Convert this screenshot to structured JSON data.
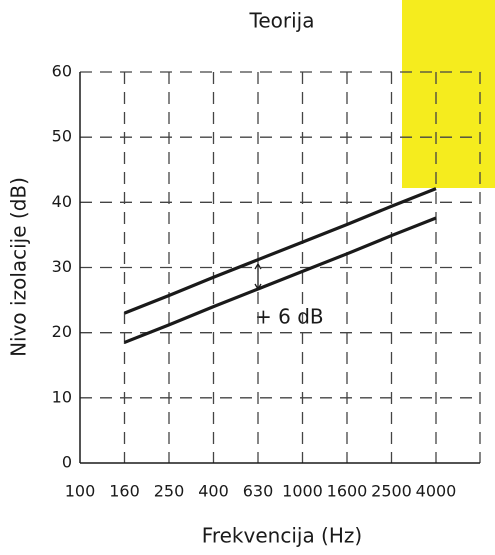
{
  "chart_data": {
    "type": "line",
    "title": "Teorija",
    "x_label": "Frekvencija (Hz)",
    "y_label": "Nivo izolacije (dB)",
    "categories": [
      "100",
      "160",
      "250",
      "400",
      "630",
      "1000",
      "1600",
      "2500",
      "4000"
    ],
    "series": [
      {
        "color": "#1a1a1a",
        "values": [
          null,
          23.0,
          25.7,
          28.5,
          31.2,
          33.9,
          36.6,
          39.4,
          42.1
        ]
      },
      {
        "color": "#1a1a1a",
        "values": [
          null,
          18.5,
          21.2,
          24.0,
          26.7,
          29.4,
          32.1,
          34.9,
          37.6
        ]
      }
    ],
    "annotation": "+ 6 dB",
    "ylim": [
      0,
      60
    ],
    "yticks": [
      0,
      10,
      20,
      30,
      40,
      50,
      60
    ],
    "grid": true
  }
}
